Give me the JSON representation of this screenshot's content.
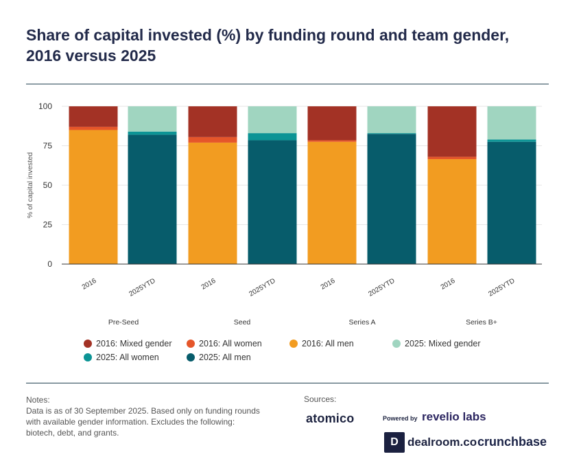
{
  "title": {
    "line1": "Share of capital invested (%) by funding round and team gender,",
    "line2": "2016 versus 2025"
  },
  "chart_data": {
    "type": "bar",
    "stacked": true,
    "ylabel": "% of capital invested",
    "ylim": [
      0,
      100
    ],
    "yticks": [
      0,
      25,
      50,
      75,
      100
    ],
    "groups": [
      {
        "name": "Pre-Seed",
        "bars": [
          {
            "label": "2016",
            "year": "2016",
            "all_men": 85,
            "all_women": 2,
            "mixed": 13
          },
          {
            "label": "2025YTD",
            "year": "2025",
            "all_men": 82,
            "all_women": 2,
            "mixed": 16
          }
        ]
      },
      {
        "name": "Seed",
        "bars": [
          {
            "label": "2016",
            "year": "2016",
            "all_men": 77,
            "all_women": 3.5,
            "mixed": 19.5
          },
          {
            "label": "2025YTD",
            "year": "2025",
            "all_men": 78.5,
            "all_women": 4.5,
            "mixed": 17
          }
        ]
      },
      {
        "name": "Series A",
        "bars": [
          {
            "label": "2016",
            "year": "2016",
            "all_men": 77.5,
            "all_women": 1,
            "mixed": 21.5
          },
          {
            "label": "2025YTD",
            "year": "2025",
            "all_men": 82.5,
            "all_women": 0.5,
            "mixed": 17
          }
        ]
      },
      {
        "name": "Series B+",
        "bars": [
          {
            "label": "2016",
            "year": "2016",
            "all_men": 66.5,
            "all_women": 1.5,
            "mixed": 32
          },
          {
            "label": "2025YTD",
            "year": "2025",
            "all_men": 77.5,
            "all_women": 1.5,
            "mixed": 21
          }
        ]
      }
    ],
    "series": [
      {
        "name": "2016: Mixed gender",
        "key": "mixed",
        "year": "2016",
        "color": "#a33225"
      },
      {
        "name": "2016: All women",
        "key": "all_women",
        "year": "2016",
        "color": "#e5562a"
      },
      {
        "name": "2016: All men",
        "key": "all_men",
        "year": "2016",
        "color": "#f29c21"
      },
      {
        "name": "2025: Mixed gender",
        "key": "mixed",
        "year": "2025",
        "color": "#a0d5c0"
      },
      {
        "name": "2025: All women",
        "key": "all_women",
        "year": "2025",
        "color": "#0c9495"
      },
      {
        "name": "2025: All men",
        "key": "all_men",
        "year": "2025",
        "color": "#075c6b"
      }
    ]
  },
  "notes": {
    "label": "Notes:",
    "line1": "Data is as of 30 September 2025. Based only on funding rounds",
    "line2": "with available gender information. Excludes the following:",
    "line3": "biotech, debt, and grants."
  },
  "sources": {
    "label": "Sources:",
    "atomico": "atomico",
    "powered_by": "Powered by",
    "revelio": "revelio labs",
    "dealroom_mark": "D",
    "dealroom": "dealroom.co",
    "crunchbase": "crunchbase"
  }
}
